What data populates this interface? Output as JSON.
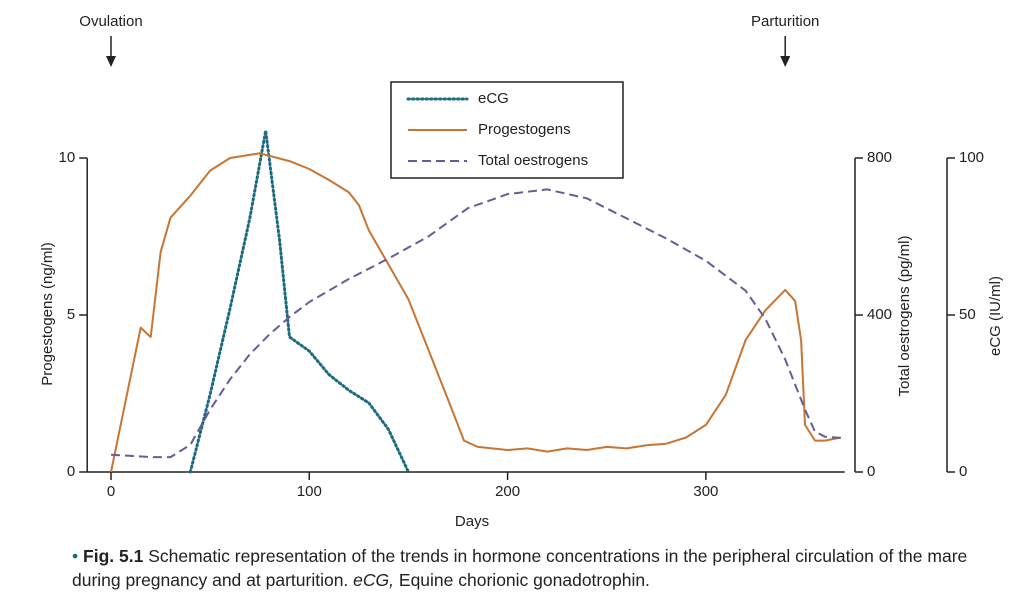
{
  "chart_data": {
    "type": "line",
    "xlabel": "Days",
    "ylabel": "Progestogens (ng/ml)",
    "y2label": "Total oestrogens (pg/ml)",
    "y3label": "eCG (IU/ml)",
    "xlim": [
      -12,
      370
    ],
    "xticks": [
      0,
      100,
      200,
      300
    ],
    "ylim": [
      0,
      10
    ],
    "yticks": [
      0,
      5,
      10
    ],
    "y2lim": [
      0,
      800
    ],
    "y2ticks": [
      0,
      400,
      800
    ],
    "y3lim": [
      0,
      100
    ],
    "y3ticks": [
      0,
      50,
      100
    ],
    "annotations": [
      {
        "text": "Ovulation",
        "x": 0
      },
      {
        "text": "Parturition",
        "x": 340
      }
    ],
    "series": [
      {
        "name": "eCG",
        "color": "#1d6b80",
        "dash": "dotted",
        "axis": "y3",
        "x": [
          40,
          50,
          60,
          70,
          78,
          85,
          90,
          100,
          110,
          120,
          130,
          140,
          150
        ],
        "values": [
          0,
          24.7,
          52,
          80.8,
          108.7,
          74,
          43,
          38.5,
          31,
          26,
          22,
          13.5,
          0
        ]
      },
      {
        "name": "Progestogens",
        "color": "#c87533",
        "dash": "solid",
        "axis": "y",
        "x": [
          0,
          15,
          20,
          25,
          30,
          40,
          50,
          60,
          75,
          90,
          100,
          110,
          120,
          125,
          130,
          140,
          150,
          160,
          170,
          178,
          185,
          200,
          210,
          220,
          230,
          240,
          250,
          260,
          270,
          280,
          290,
          300,
          310,
          320,
          330,
          340,
          345,
          348,
          350,
          355,
          360,
          368
        ],
        "values": [
          0,
          4.6,
          4.3,
          7.0,
          8.1,
          8.8,
          9.6,
          10.0,
          10.15,
          9.9,
          9.65,
          9.3,
          8.9,
          8.5,
          7.7,
          6.6,
          5.5,
          3.9,
          2.3,
          1.0,
          0.8,
          0.7,
          0.75,
          0.65,
          0.75,
          0.7,
          0.8,
          0.75,
          0.85,
          0.9,
          1.1,
          1.5,
          2.45,
          4.2,
          5.15,
          5.8,
          5.45,
          4.2,
          1.5,
          1.0,
          1.0,
          1.1
        ]
      },
      {
        "name": "Total oestrogens",
        "color": "#6a5a9a",
        "dash": "dashed",
        "axis": "y2",
        "x": [
          0,
          10,
          20,
          30,
          40,
          50,
          60,
          70,
          80,
          90,
          100,
          120,
          140,
          160,
          180,
          200,
          220,
          240,
          260,
          280,
          300,
          320,
          330,
          340,
          350,
          355,
          360,
          368
        ],
        "values": [
          44,
          41,
          38,
          38,
          69,
          159,
          236,
          300,
          351,
          395,
          433,
          492,
          544,
          600,
          672,
          708,
          720,
          697,
          646,
          595,
          538,
          462,
          390,
          287,
          159,
          103,
          90,
          87
        ]
      }
    ]
  },
  "caption": {
    "label": "Fig. 5.1",
    "text": "Schematic representation of the trends in hormone concentrations in the peripheral circulation of the mare during pregnancy and at parturition.",
    "abbr": "eCG,",
    "definition": "Equine chorionic gonadotrophin."
  }
}
